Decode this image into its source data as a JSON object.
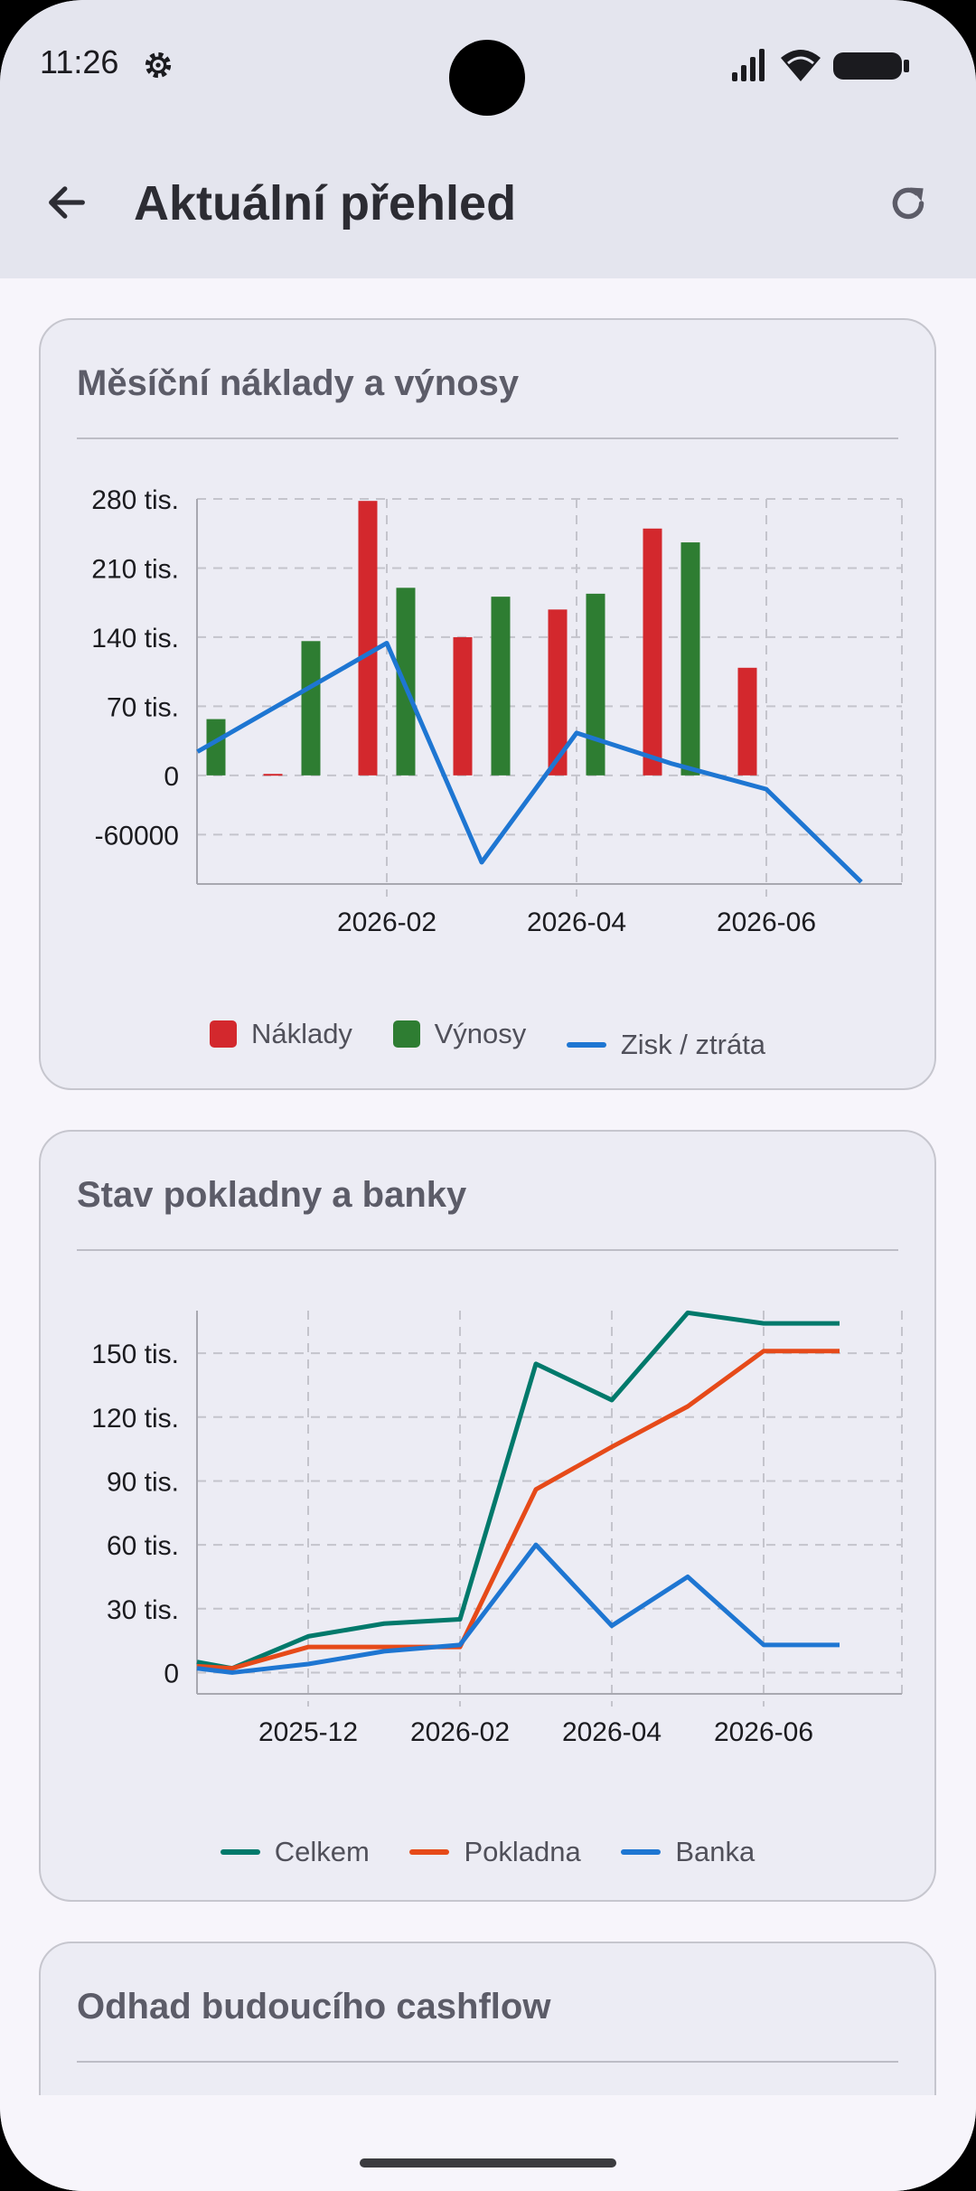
{
  "status_bar": {
    "time": "11:26"
  },
  "app_bar": {
    "title": "Aktuální přehled"
  },
  "cards": [
    {
      "title": "Měsíční náklady a výnosy",
      "legend": [
        "Náklady",
        "Výnosy",
        "Zisk / ztráta"
      ]
    },
    {
      "title": "Stav pokladny a banky",
      "legend": [
        "Celkem",
        "Pokladna",
        "Banka"
      ]
    },
    {
      "title": "Odhad budoucího cashflow"
    }
  ],
  "chart_data": [
    {
      "type": "bar",
      "title": "Měsíční náklady a výnosy",
      "x_ticks": [
        "2026-02",
        "2026-04",
        "2026-06"
      ],
      "y_ticks": [
        "280 tis.",
        "210 tis.",
        "140 tis.",
        "70 tis.",
        "0",
        "-60000"
      ],
      "ylim": [
        -110000,
        280000
      ],
      "grid": true,
      "legend_position": "bottom",
      "colors": {
        "Náklady": "#d3282d",
        "Výnosy": "#2e7d32",
        "Zisk / ztráta": "#1e76d2"
      },
      "months": [
        "2025-12",
        "2026-01",
        "2026-02",
        "2026-03",
        "2026-04",
        "2026-05",
        "2026-06",
        "2026-07"
      ],
      "series": [
        {
          "name": "Náklady",
          "type": "bar",
          "values": [
            0,
            1500,
            278000,
            140000,
            168000,
            250000,
            109000,
            0
          ]
        },
        {
          "name": "Výnosy",
          "type": "bar",
          "values": [
            57000,
            136000,
            190000,
            181000,
            184000,
            236000,
            0,
            0
          ]
        },
        {
          "name": "Zisk / ztráta",
          "type": "line",
          "x": [
            0.5,
            2,
            3,
            4,
            5,
            6,
            7
          ],
          "values": [
            24000,
            134000,
            -88000,
            43000,
            12000,
            -14000,
            -108000
          ]
        }
      ]
    },
    {
      "type": "line",
      "title": "Stav pokladny a banky",
      "x_ticks": [
        "2025-12",
        "2026-02",
        "2026-04",
        "2026-06"
      ],
      "y_ticks": [
        "150 tis.",
        "120 tis.",
        "90 tis.",
        "60 tis.",
        "30 tis.",
        "0"
      ],
      "ylim": [
        -10000,
        170000
      ],
      "grid": true,
      "legend_position": "bottom",
      "colors": {
        "Celkem": "#00796b",
        "Pokladna": "#e64a19",
        "Banka": "#1e76d2"
      },
      "x": [
        "2025-11",
        "2025-11",
        "2025-12",
        "2026-01",
        "2026-02",
        "2026-03",
        "2026-04",
        "2026-05",
        "2026-06",
        "2026-07"
      ],
      "series": [
        {
          "name": "Celkem",
          "values": [
            5000,
            2000,
            17000,
            23000,
            25000,
            145000,
            128000,
            169000,
            164000,
            164000
          ]
        },
        {
          "name": "Pokladna",
          "values": [
            3000,
            2000,
            12000,
            12000,
            12000,
            86000,
            106000,
            125000,
            151000,
            151000
          ]
        },
        {
          "name": "Banka",
          "values": [
            2000,
            0,
            4000,
            10000,
            13000,
            60000,
            22000,
            45000,
            13000,
            13000
          ]
        }
      ]
    }
  ]
}
